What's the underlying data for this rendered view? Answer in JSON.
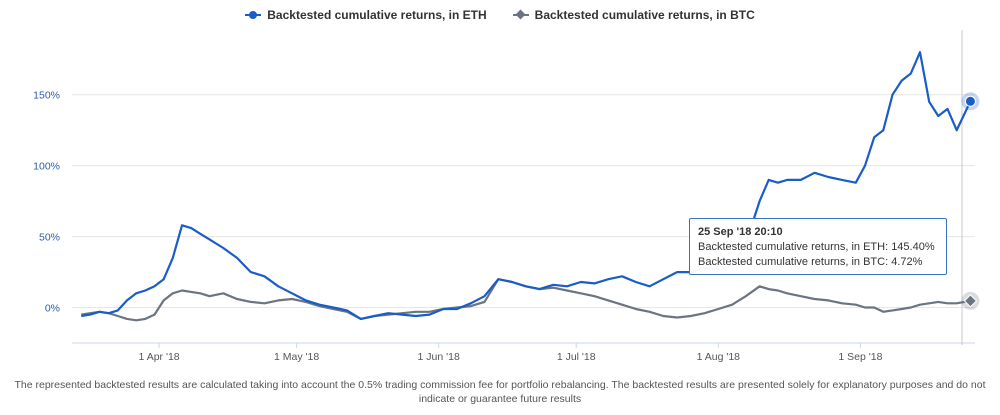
{
  "colors": {
    "eth": "#1a5cc8",
    "btc": "#6b7480",
    "grid": "#e6e6e6",
    "tooltip_border": "#3b73c4"
  },
  "legend": {
    "eth_label": "Backtested cumulative returns, in ETH",
    "btc_label": "Backtested cumulative returns, in BTC"
  },
  "tooltip": {
    "title": "25 Sep '18 20:10",
    "eth_line": "Backtested cumulative returns, in ETH: 145.40%",
    "btc_line": "Backtested cumulative returns, in BTC: 4.72%"
  },
  "disclaimer": "The represented backtested results are calculated taking into account the 0.5% trading commission fee for portfolio rebalancing. The backtested results are presented solely for explanatory purposes and do not indicate or guarantee future results",
  "chart_data": {
    "type": "line",
    "title": "",
    "xlabel": "",
    "ylabel": "",
    "xlim": [
      "2018-03-13",
      "2018-09-26"
    ],
    "ylim": [
      -25,
      190
    ],
    "y_ticks": [
      0,
      50,
      100,
      150
    ],
    "y_tick_labels": [
      "0%",
      "50%",
      "100%",
      "150%"
    ],
    "x_ticks": [
      "2018-04-01",
      "2018-05-01",
      "2018-06-01",
      "2018-07-01",
      "2018-08-01",
      "2018-09-01"
    ],
    "x_tick_labels": [
      "1 Apr '18",
      "1 May '18",
      "1 Jun '18",
      "1 Jul '18",
      "1 Aug '18",
      "1 Sep '18"
    ],
    "grid": true,
    "legend_position": "top-center",
    "series": [
      {
        "name": "Backtested cumulative returns, in ETH",
        "x": [
          "2018-03-15",
          "2018-03-17",
          "2018-03-19",
          "2018-03-21",
          "2018-03-23",
          "2018-03-25",
          "2018-03-27",
          "2018-03-29",
          "2018-03-31",
          "2018-04-02",
          "2018-04-04",
          "2018-04-06",
          "2018-04-08",
          "2018-04-10",
          "2018-04-12",
          "2018-04-15",
          "2018-04-18",
          "2018-04-21",
          "2018-04-24",
          "2018-04-27",
          "2018-04-30",
          "2018-05-03",
          "2018-05-06",
          "2018-05-09",
          "2018-05-12",
          "2018-05-15",
          "2018-05-18",
          "2018-05-21",
          "2018-05-24",
          "2018-05-27",
          "2018-05-30",
          "2018-06-02",
          "2018-06-05",
          "2018-06-08",
          "2018-06-11",
          "2018-06-14",
          "2018-06-17",
          "2018-06-20",
          "2018-06-23",
          "2018-06-26",
          "2018-06-29",
          "2018-07-02",
          "2018-07-05",
          "2018-07-08",
          "2018-07-11",
          "2018-07-14",
          "2018-07-17",
          "2018-07-20",
          "2018-07-23",
          "2018-07-26",
          "2018-07-29",
          "2018-08-01",
          "2018-08-04",
          "2018-08-07",
          "2018-08-10",
          "2018-08-12",
          "2018-08-14",
          "2018-08-16",
          "2018-08-19",
          "2018-08-22",
          "2018-08-25",
          "2018-08-28",
          "2018-08-31",
          "2018-09-02",
          "2018-09-04",
          "2018-09-06",
          "2018-09-08",
          "2018-09-10",
          "2018-09-12",
          "2018-09-14",
          "2018-09-16",
          "2018-09-18",
          "2018-09-20",
          "2018-09-22",
          "2018-09-25"
        ],
        "values": [
          -6,
          -5,
          -3,
          -4,
          -2,
          5,
          10,
          12,
          15,
          20,
          35,
          58,
          56,
          52,
          48,
          42,
          35,
          25,
          22,
          15,
          10,
          5,
          2,
          0,
          -2,
          -8,
          -6,
          -4,
          -5,
          -6,
          -5,
          -1,
          -1,
          3,
          8,
          20,
          18,
          15,
          13,
          16,
          15,
          18,
          17,
          20,
          22,
          18,
          15,
          20,
          25,
          25,
          28,
          27,
          30,
          45,
          75,
          90,
          88,
          90,
          90,
          95,
          92,
          90,
          88,
          100,
          120,
          125,
          150,
          160,
          165,
          180,
          145,
          135,
          140,
          125,
          145.4
        ]
      },
      {
        "name": "Backtested cumulative returns, in BTC",
        "x": [
          "2018-03-15",
          "2018-03-17",
          "2018-03-19",
          "2018-03-21",
          "2018-03-23",
          "2018-03-25",
          "2018-03-27",
          "2018-03-29",
          "2018-03-31",
          "2018-04-02",
          "2018-04-04",
          "2018-04-06",
          "2018-04-08",
          "2018-04-10",
          "2018-04-12",
          "2018-04-15",
          "2018-04-18",
          "2018-04-21",
          "2018-04-24",
          "2018-04-27",
          "2018-04-30",
          "2018-05-03",
          "2018-05-06",
          "2018-05-09",
          "2018-05-12",
          "2018-05-15",
          "2018-05-18",
          "2018-05-21",
          "2018-05-24",
          "2018-05-27",
          "2018-05-30",
          "2018-06-02",
          "2018-06-05",
          "2018-06-08",
          "2018-06-11",
          "2018-06-14",
          "2018-06-17",
          "2018-06-20",
          "2018-06-23",
          "2018-06-26",
          "2018-06-29",
          "2018-07-02",
          "2018-07-05",
          "2018-07-08",
          "2018-07-11",
          "2018-07-14",
          "2018-07-17",
          "2018-07-20",
          "2018-07-23",
          "2018-07-26",
          "2018-07-29",
          "2018-08-01",
          "2018-08-04",
          "2018-08-07",
          "2018-08-10",
          "2018-08-12",
          "2018-08-14",
          "2018-08-16",
          "2018-08-19",
          "2018-08-22",
          "2018-08-25",
          "2018-08-28",
          "2018-08-31",
          "2018-09-02",
          "2018-09-04",
          "2018-09-06",
          "2018-09-08",
          "2018-09-10",
          "2018-09-12",
          "2018-09-14",
          "2018-09-16",
          "2018-09-18",
          "2018-09-20",
          "2018-09-22",
          "2018-09-25"
        ],
        "values": [
          -5,
          -4,
          -3,
          -4,
          -6,
          -8,
          -9,
          -8,
          -5,
          5,
          10,
          12,
          11,
          10,
          8,
          10,
          6,
          4,
          3,
          5,
          6,
          4,
          1,
          -1,
          -3,
          -8,
          -6,
          -5,
          -4,
          -3,
          -3,
          -1,
          0,
          1,
          4,
          20,
          18,
          15,
          13,
          14,
          12,
          10,
          8,
          5,
          2,
          -1,
          -3,
          -6,
          -7,
          -6,
          -4,
          -1,
          2,
          8,
          15,
          13,
          12,
          10,
          8,
          6,
          5,
          3,
          2,
          0,
          0,
          -3,
          -2,
          -1,
          0,
          2,
          3,
          4,
          3,
          3,
          4.72
        ]
      }
    ]
  }
}
